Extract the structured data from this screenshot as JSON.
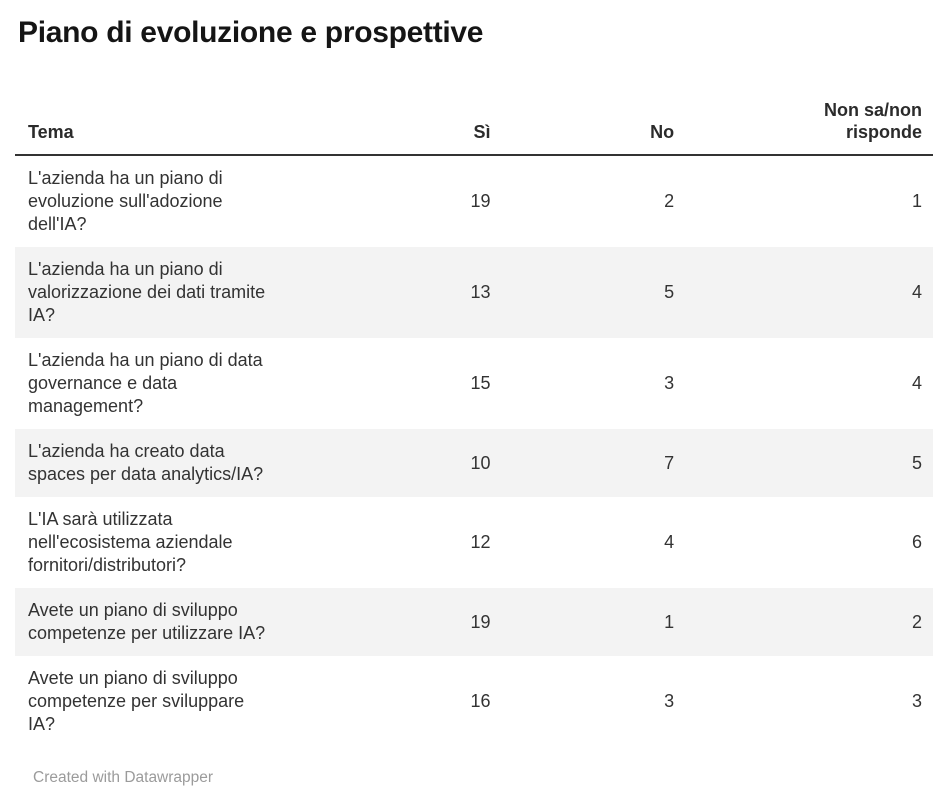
{
  "page": {
    "title": "Piano di evoluzione e prospettive",
    "credit": "Created with Datawrapper"
  },
  "colors": {
    "background": "#ffffff",
    "title_text": "#151515",
    "body_text": "#333333",
    "header_rule": "#333333",
    "stripe": "#f3f3f3",
    "credit_text": "#9b9b9b"
  },
  "chart_data": {
    "type": "table",
    "title": "Piano di evoluzione e prospettive",
    "columns": [
      "Tema",
      "Sì",
      "No",
      "Non sa/non risponde"
    ],
    "column_alignment": [
      "left",
      "right",
      "right",
      "right"
    ],
    "zebra_striped_rows": [
      2,
      4,
      6
    ],
    "rows": [
      {
        "tema": "L'azienda ha un piano di evoluzione sull'adozione dell'IA?",
        "values": [
          19,
          2,
          1
        ]
      },
      {
        "tema": "L'azienda ha un piano di valorizzazione dei dati tramite IA?",
        "values": [
          13,
          5,
          4
        ]
      },
      {
        "tema": "L'azienda ha un piano di data governance e data management?",
        "values": [
          15,
          3,
          4
        ]
      },
      {
        "tema": "L'azienda ha creato data spaces per data analytics/IA?",
        "values": [
          10,
          7,
          5
        ]
      },
      {
        "tema": "L'IA sarà utilizzata nell'ecosistema aziendale fornitori/distributori?",
        "values": [
          12,
          4,
          6
        ]
      },
      {
        "tema": "Avete un piano di sviluppo competenze per utilizzare IA?",
        "values": [
          19,
          1,
          2
        ]
      },
      {
        "tema": "Avete un piano di sviluppo competenze per sviluppare IA?",
        "values": [
          16,
          3,
          3
        ]
      }
    ],
    "footer": "Created with Datawrapper"
  }
}
